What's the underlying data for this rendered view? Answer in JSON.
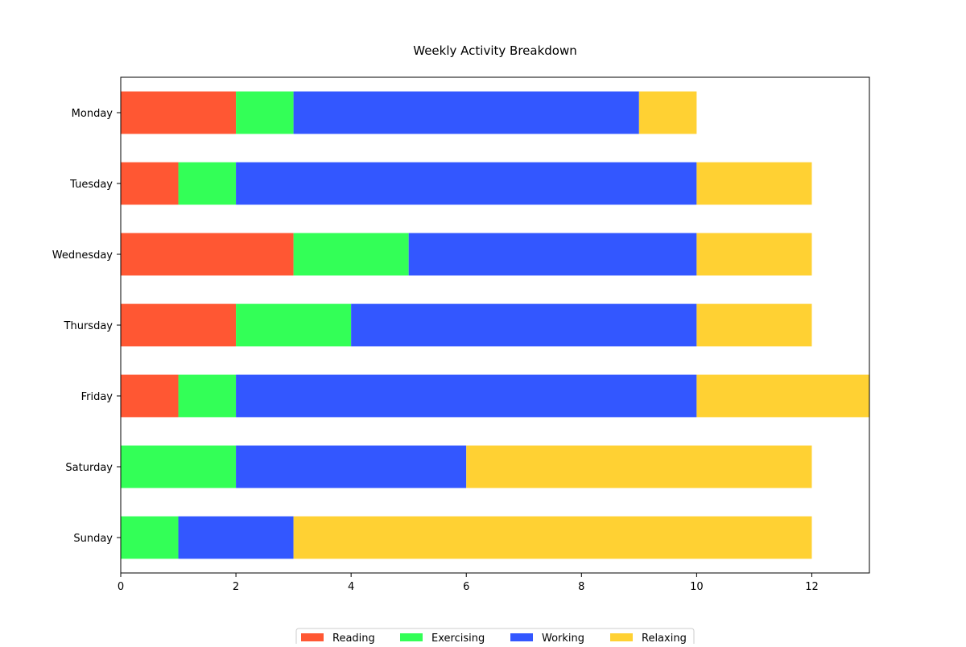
{
  "chart_data": {
    "type": "bar",
    "orientation": "horizontal",
    "stacked": true,
    "title": "Weekly Activity Breakdown",
    "xlabel": "",
    "ylabel": "",
    "categories": [
      "Monday",
      "Tuesday",
      "Wednesday",
      "Thursday",
      "Friday",
      "Saturday",
      "Sunday"
    ],
    "series": [
      {
        "name": "Reading",
        "color": "#ff5733",
        "values": [
          2,
          1,
          3,
          2,
          1,
          0,
          0
        ]
      },
      {
        "name": "Exercising",
        "color": "#33ff57",
        "values": [
          1,
          1,
          2,
          2,
          1,
          2,
          1
        ]
      },
      {
        "name": "Working",
        "color": "#3357ff",
        "values": [
          6,
          8,
          5,
          6,
          8,
          4,
          2
        ]
      },
      {
        "name": "Relaxing",
        "color": "#ffd133",
        "values": [
          1,
          2,
          2,
          2,
          3,
          6,
          9
        ]
      }
    ],
    "xlim": [
      0,
      13
    ],
    "xticks": [
      0,
      2,
      4,
      6,
      8,
      10,
      12
    ],
    "grid": false,
    "legend_position": "bottom-center"
  }
}
